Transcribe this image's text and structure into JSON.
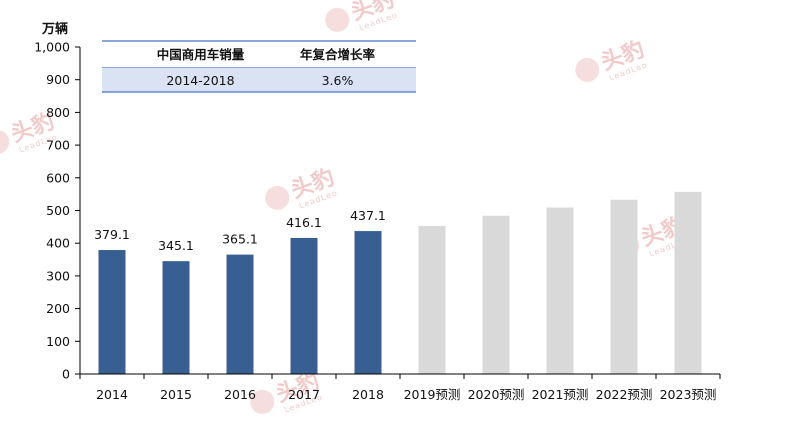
{
  "chart_data": {
    "type": "bar",
    "unit_label": "万辆",
    "categories": [
      "2014",
      "2015",
      "2016",
      "2017",
      "2018",
      "2019预测",
      "2020预测",
      "2021预测",
      "2022预测",
      "2023预测"
    ],
    "series": [
      {
        "values": [
          379.1,
          345.1,
          365.1,
          416.1,
          437.1,
          452.8,
          484.0,
          509.0,
          533.0,
          557.0
        ],
        "data_labels": [
          "379.1",
          "345.1",
          "365.1",
          "416.1",
          "437.1",
          "",
          "",
          "",
          "",
          ""
        ],
        "forecast": [
          false,
          false,
          false,
          false,
          false,
          true,
          true,
          true,
          true,
          true
        ]
      }
    ],
    "ylim": [
      0,
      1000
    ],
    "y_ticks": [
      0,
      100,
      200,
      300,
      400,
      500,
      600,
      700,
      800,
      900,
      1000
    ],
    "y_tick_labels": [
      "0",
      "100",
      "200",
      "300",
      "400",
      "500",
      "600",
      "700",
      "800",
      "900",
      "1,000"
    ],
    "grid": false,
    "colors": {
      "actual": "#375f91",
      "forecast": "#d9d9d9"
    }
  },
  "table": {
    "headers": [
      "中国商用车销量",
      "年复合增长率"
    ],
    "row": [
      "2014-2018",
      "3.6%"
    ],
    "colors": {
      "row_bg": "#dae3f3",
      "rule": "#4472c4"
    }
  },
  "watermark": {
    "text": "头豹",
    "sub": "LeadLeo",
    "color": "#e8a0a0"
  }
}
